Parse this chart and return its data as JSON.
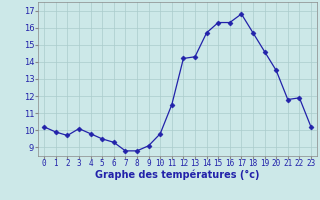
{
  "hours": [
    0,
    1,
    2,
    3,
    4,
    5,
    6,
    7,
    8,
    9,
    10,
    11,
    12,
    13,
    14,
    15,
    16,
    17,
    18,
    19,
    20,
    21,
    22,
    23
  ],
  "temperatures": [
    10.2,
    9.9,
    9.7,
    10.1,
    9.8,
    9.5,
    9.3,
    8.8,
    8.8,
    9.1,
    9.8,
    11.5,
    14.2,
    14.3,
    15.7,
    16.3,
    16.3,
    16.8,
    15.7,
    14.6,
    13.5,
    11.8,
    11.9,
    10.2
  ],
  "line_color": "#2222aa",
  "marker": "D",
  "marker_size": 2.5,
  "bg_color": "#cce8e8",
  "grid_color": "#aacccc",
  "xlabel": "Graphe des températures (°c)",
  "xlabel_color": "#2222aa",
  "tick_color": "#2222aa",
  "ylim": [
    8.5,
    17.5
  ],
  "yticks": [
    9,
    10,
    11,
    12,
    13,
    14,
    15,
    16,
    17
  ],
  "xlim": [
    -0.5,
    23.5
  ],
  "axis_color": "#888888",
  "tick_fontsize": 5.5,
  "xlabel_fontsize": 7.0,
  "ytick_fontsize": 6.0
}
